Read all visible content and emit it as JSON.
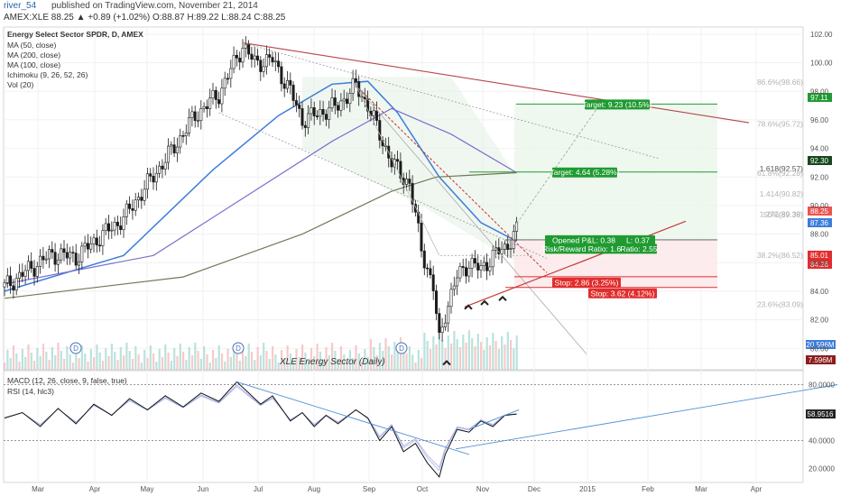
{
  "header": {
    "author": "river_54",
    "published": "published on TradingView.com, November 21, 2014",
    "ohlc": "AMEX:XLE 88.25 ▲ +0.89 (+1.02%) O:88.87 H:89.22 L:88.24 C:88.25"
  },
  "indicators": [
    "Energy Select Sector SPDR, D, AMEX",
    "MA (50, close)",
    "MA (200, close)",
    "MA (100, close)",
    "Ichimoku (9, 26, 52, 26)",
    "Vol (20)"
  ],
  "lower_indicators": [
    "MACD (12, 26, close, 9, false, true)",
    "RSI (14, hlc3)"
  ],
  "colors": {
    "up": "#26a69a",
    "down": "#ef5350",
    "candle": "#1c1c1c",
    "ma50": "#3d7ddb",
    "ma100": "#7c6fd0",
    "ma200": "#6e7a55",
    "resistance": "#b8454b",
    "support": "#c43b3b",
    "target": "#1f9b31",
    "stop": "#e12d2d"
  },
  "chart_data": {
    "type": "candlestick",
    "title": "XLE Energy Sector (Daily)",
    "x_ticks": [
      "Mar",
      "Apr",
      "May",
      "Jun",
      "Jul",
      "Aug",
      "Sep",
      "Oct",
      "Nov",
      "Dec",
      "2015",
      "Feb",
      "Mar",
      "Apr"
    ],
    "y_ticks": [
      "102.00",
      "100.00",
      "98.00",
      "96.00",
      "94.00",
      "92.00",
      "90.00",
      "88.00",
      "86.00",
      "84.00",
      "82.00",
      "80.00"
    ],
    "ylim": [
      78.5,
      102.5
    ],
    "price_path": [
      [
        0,
        84.3
      ],
      [
        8,
        85.5
      ],
      [
        16,
        86.6
      ],
      [
        24,
        86.4
      ],
      [
        32,
        87.8
      ],
      [
        40,
        89.1
      ],
      [
        48,
        91.5
      ],
      [
        56,
        93.8
      ],
      [
        64,
        96.3
      ],
      [
        72,
        97.8
      ],
      [
        80,
        101.2
      ],
      [
        84,
        100.0
      ],
      [
        90,
        100.2
      ],
      [
        96,
        98.0
      ],
      [
        100,
        96.0
      ],
      [
        106,
        96.5
      ],
      [
        112,
        97.0
      ],
      [
        118,
        98.4
      ],
      [
        122,
        97.0
      ],
      [
        126,
        95.0
      ],
      [
        130,
        93.0
      ],
      [
        136,
        91.5
      ],
      [
        140,
        87.0
      ],
      [
        144,
        84.2
      ],
      [
        146,
        80.5
      ],
      [
        148,
        82.5
      ],
      [
        152,
        85.0
      ],
      [
        156,
        86.0
      ],
      [
        160,
        85.5
      ],
      [
        164,
        86.5
      ],
      [
        168,
        87.0
      ],
      [
        172,
        88.25
      ]
    ],
    "moving_averages": [
      {
        "name": "MA 50",
        "points": [
          [
            0,
            84.0
          ],
          [
            40,
            86.5
          ],
          [
            70,
            92.5
          ],
          [
            92,
            96.3
          ],
          [
            110,
            98.5
          ],
          [
            122,
            98.7
          ],
          [
            132,
            96.5
          ],
          [
            146,
            92.0
          ],
          [
            160,
            88.8
          ],
          [
            172,
            87.5
          ]
        ]
      },
      {
        "name": "MA 100",
        "points": [
          [
            0,
            84.5
          ],
          [
            50,
            86.5
          ],
          [
            80,
            90.5
          ],
          [
            110,
            94.5
          ],
          [
            130,
            96.8
          ],
          [
            150,
            95.0
          ],
          [
            172,
            92.3
          ]
        ]
      },
      {
        "name": "MA 200",
        "points": [
          [
            0,
            83.5
          ],
          [
            60,
            85.0
          ],
          [
            100,
            88.0
          ],
          [
            130,
            91.0
          ],
          [
            145,
            92.0
          ],
          [
            172,
            92.3
          ]
        ]
      }
    ],
    "fib_levels": [
      {
        "label": "86.6%(98.66)",
        "value": 98.66
      },
      {
        "label": "78.6%(95.72)",
        "value": 95.72
      },
      {
        "label": "1.618(92.57)",
        "value": 92.57
      },
      {
        "label": "61.8%(92.28)",
        "value": 92.28
      },
      {
        "label": "1.414(90.82)",
        "value": 90.82
      },
      {
        "label": "1.272(89.39)",
        "value": 89.39
      },
      {
        "label": "50%(89.36)",
        "value": 89.36
      },
      {
        "label": "38.2%(86.52)",
        "value": 86.52
      },
      {
        "label": "23.6%(83.09)",
        "value": 83.09
      }
    ],
    "trade_boxes": [
      {
        "label": "Target: 9.23 (10.5%)",
        "value": 97.11,
        "kind": "target"
      },
      {
        "label": "Target: 4.64 (5.28%)",
        "value": 92.35,
        "kind": "target"
      },
      {
        "label": "Opened P&L: 0.38",
        "value": 87.6,
        "kind": "pnl"
      },
      {
        "label": "Risk/Reward Ratio: 1.62",
        "value": 87.0,
        "kind": "pnl"
      },
      {
        "label": "L: 0.37",
        "value": 87.6,
        "kind": "pnl"
      },
      {
        "label": "Ratio: 2.55",
        "value": 87.0,
        "kind": "pnl"
      },
      {
        "label": "Stop: 2.86 (3.25%)",
        "value": 85.01,
        "kind": "stop"
      },
      {
        "label": "Stop: 3.62 (4.12%)",
        "value": 84.26,
        "kind": "stop"
      }
    ],
    "price_labels": [
      {
        "label": "97.11",
        "value": 97.11,
        "color": "#1f9b31"
      },
      {
        "label": "92.30",
        "value": 92.3,
        "color": "#15491d"
      },
      {
        "label": "88.25",
        "value": 88.25,
        "color": "#ef5350"
      },
      {
        "label": "87.36",
        "value": 87.36,
        "color": "#3d7ddb"
      },
      {
        "label": "85.01",
        "value": 85.01,
        "color": "#e12d2d"
      },
      {
        "label": "84.26",
        "value": 84.26,
        "color": "#e12d2d"
      }
    ],
    "volume_labels": [
      {
        "label": "20.596M",
        "color": "#3d7ddb"
      },
      {
        "label": "7.596M",
        "color": "#8b1d1d"
      }
    ],
    "dividend_marker": "D",
    "rsi": {
      "y_ticks": [
        "80.0000",
        "40.0000",
        "20.0000"
      ],
      "ylim": [
        10,
        90
      ],
      "current": "58.9516",
      "points": [
        [
          0,
          56
        ],
        [
          6,
          60
        ],
        [
          12,
          50
        ],
        [
          18,
          63
        ],
        [
          24,
          52
        ],
        [
          30,
          66
        ],
        [
          36,
          58
        ],
        [
          42,
          70
        ],
        [
          48,
          62
        ],
        [
          54,
          72
        ],
        [
          60,
          64
        ],
        [
          66,
          74
        ],
        [
          72,
          68
        ],
        [
          78,
          82
        ],
        [
          82,
          74
        ],
        [
          86,
          66
        ],
        [
          90,
          72
        ],
        [
          96,
          54
        ],
        [
          100,
          60
        ],
        [
          104,
          50
        ],
        [
          108,
          58
        ],
        [
          112,
          52
        ],
        [
          118,
          62
        ],
        [
          122,
          56
        ],
        [
          126,
          40
        ],
        [
          130,
          50
        ],
        [
          134,
          32
        ],
        [
          138,
          38
        ],
        [
          142,
          24
        ],
        [
          146,
          14
        ],
        [
          148,
          30
        ],
        [
          152,
          48
        ],
        [
          156,
          46
        ],
        [
          160,
          54
        ],
        [
          164,
          50
        ],
        [
          168,
          58
        ],
        [
          172,
          59
        ]
      ]
    }
  }
}
